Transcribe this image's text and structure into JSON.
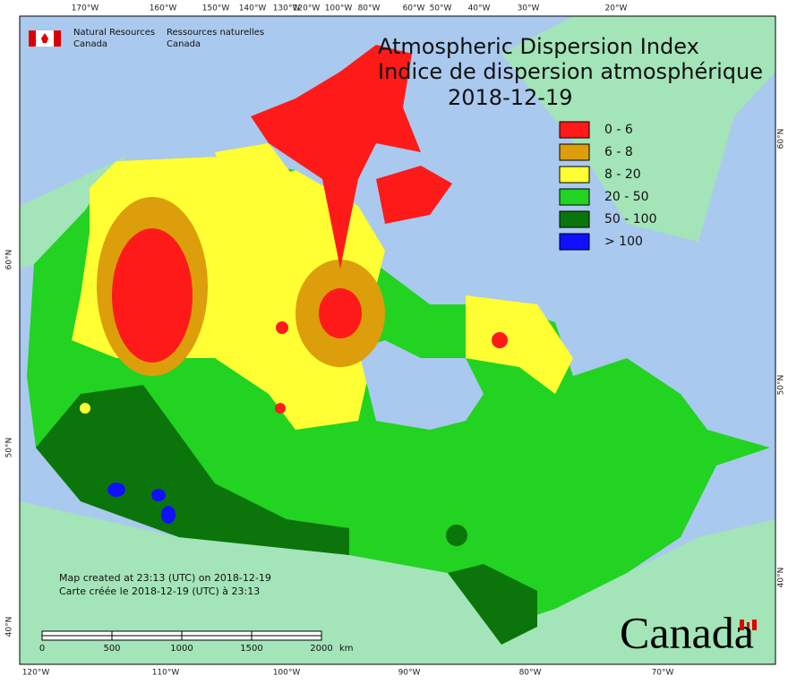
{
  "agency": {
    "en": [
      "Natural Resources",
      "Canada"
    ],
    "fr": [
      "Ressources naturelles",
      "Canada"
    ]
  },
  "title": [
    "Atmospheric Dispersion Index",
    "Indice de dispersion atmosphérique"
  ],
  "date": "2018-12-19",
  "legend": [
    {
      "label": "0 - 6",
      "color": "#ff1a1a"
    },
    {
      "label": "6 - 8",
      "color": "#dc9e0a"
    },
    {
      "label": "8 - 20",
      "color": "#ffff33"
    },
    {
      "label": "20 - 50",
      "color": "#22d322"
    },
    {
      "label": "50 - 100",
      "color": "#0b750b"
    },
    {
      "label": "> 100",
      "color": "#1010ff"
    }
  ],
  "graticule": {
    "top": [
      "170°W",
      "160°W",
      "150°W",
      "140°W",
      "130°W",
      "120°W",
      "100°W",
      "80°W",
      "60°W",
      "50°W",
      "40°W",
      "30°W",
      "20°W"
    ],
    "bottom": [
      "120°W",
      "110°W",
      "100°W",
      "90°W",
      "80°W",
      "70°W"
    ],
    "left": [
      "60°N",
      "50°N",
      "40°N"
    ],
    "right": [
      "60°N",
      "50°N",
      "40°N"
    ]
  },
  "notes": [
    "Map created at 23:13 (UTC) on 2018-12-19",
    "Carte créée le 2018-12-19 (UTC) à 23:13"
  ],
  "scale": {
    "ticks": [
      "0",
      "500",
      "1000",
      "1500",
      "2000"
    ],
    "unit": "km"
  },
  "wordmark": "Canada"
}
